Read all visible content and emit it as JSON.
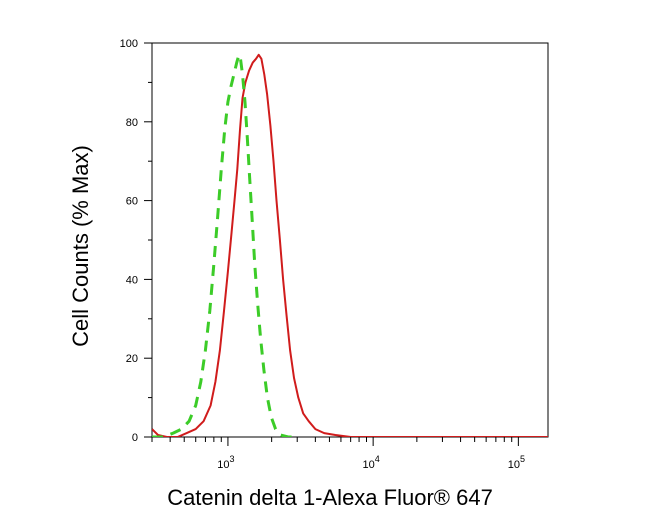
{
  "chart_data": {
    "type": "line",
    "title": "",
    "xlabel": "Catenin delta 1-Alexa Fluor® 647",
    "ylabel": "Cell Counts (% Max)",
    "x_scale": "log",
    "xlim": [
      300,
      160000
    ],
    "ylim": [
      0,
      100
    ],
    "x_ticks": [
      {
        "value": 1000,
        "base": "10",
        "exp": "3"
      },
      {
        "value": 10000,
        "base": "10",
        "exp": "4"
      },
      {
        "value": 100000,
        "base": "10",
        "exp": "5"
      }
    ],
    "y_ticks": [
      {
        "value": 0,
        "label": "0"
      },
      {
        "value": 20,
        "label": "20"
      },
      {
        "value": 40,
        "label": "40"
      },
      {
        "value": 60,
        "label": "60"
      },
      {
        "value": 80,
        "label": "80"
      },
      {
        "value": 100,
        "label": "100"
      }
    ],
    "grid": false,
    "series": [
      {
        "name": "",
        "color": "#d01c1c",
        "style": "solid",
        "points": [
          [
            300,
            2
          ],
          [
            330,
            0.5
          ],
          [
            380,
            0
          ],
          [
            450,
            0
          ],
          [
            520,
            1
          ],
          [
            600,
            2
          ],
          [
            680,
            4
          ],
          [
            760,
            8
          ],
          [
            820,
            14
          ],
          [
            880,
            22
          ],
          [
            940,
            32
          ],
          [
            1000,
            42
          ],
          [
            1060,
            52
          ],
          [
            1110,
            60
          ],
          [
            1160,
            68
          ],
          [
            1210,
            78
          ],
          [
            1260,
            86
          ],
          [
            1320,
            90
          ],
          [
            1400,
            93
          ],
          [
            1480,
            95
          ],
          [
            1560,
            96
          ],
          [
            1630,
            97
          ],
          [
            1700,
            96
          ],
          [
            1780,
            92
          ],
          [
            1860,
            87
          ],
          [
            1960,
            79
          ],
          [
            2060,
            70
          ],
          [
            2160,
            60
          ],
          [
            2280,
            50
          ],
          [
            2400,
            40
          ],
          [
            2530,
            31
          ],
          [
            2680,
            22
          ],
          [
            2850,
            15
          ],
          [
            3050,
            10
          ],
          [
            3300,
            6
          ],
          [
            3600,
            4
          ],
          [
            4000,
            2
          ],
          [
            4600,
            1
          ],
          [
            5500,
            0.5
          ],
          [
            7000,
            0
          ],
          [
            160000,
            0
          ]
        ]
      },
      {
        "name": "",
        "color": "#3ccc28",
        "style": "dashed",
        "points": [
          [
            300,
            0
          ],
          [
            360,
            0
          ],
          [
            420,
            1
          ],
          [
            480,
            2
          ],
          [
            540,
            4
          ],
          [
            600,
            8
          ],
          [
            650,
            14
          ],
          [
            700,
            22
          ],
          [
            750,
            32
          ],
          [
            800,
            44
          ],
          [
            850,
            56
          ],
          [
            900,
            68
          ],
          [
            950,
            78
          ],
          [
            1000,
            85
          ],
          [
            1050,
            89
          ],
          [
            1100,
            92
          ],
          [
            1150,
            95
          ],
          [
            1190,
            97
          ],
          [
            1220,
            96
          ],
          [
            1260,
            92
          ],
          [
            1310,
            85
          ],
          [
            1360,
            76
          ],
          [
            1410,
            66
          ],
          [
            1470,
            55
          ],
          [
            1530,
            44
          ],
          [
            1600,
            34
          ],
          [
            1680,
            25
          ],
          [
            1770,
            17
          ],
          [
            1870,
            10
          ],
          [
            1990,
            5
          ],
          [
            2130,
            2
          ],
          [
            2300,
            0.5
          ],
          [
            2600,
            0
          ],
          [
            3000,
            0
          ]
        ]
      }
    ]
  }
}
